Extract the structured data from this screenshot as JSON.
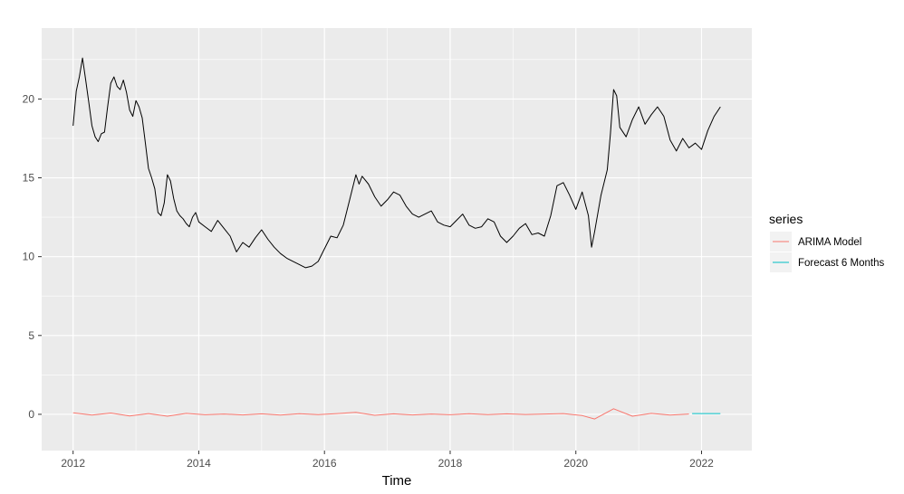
{
  "chart_data": {
    "type": "line",
    "xlabel": "Time",
    "ylabel": "",
    "xlim": [
      2011.5,
      2022.8
    ],
    "ylim": [
      -2.3,
      24.5
    ],
    "x_ticks": [
      2012,
      2014,
      2016,
      2018,
      2020,
      2022
    ],
    "y_ticks": [
      0,
      5,
      10,
      15,
      20
    ],
    "grid": true,
    "legend": {
      "title": "series",
      "position": "right",
      "entries": [
        "ARIMA Model",
        "Forecast 6 Months"
      ]
    },
    "colors": {
      "price": "#000000",
      "ARIMA Model": "#F8766D",
      "Forecast 6 Months": "#00BFC4",
      "panel": "#ebebeb",
      "grid": "#ffffff"
    },
    "series": [
      {
        "x": [
          2012.0,
          2012.05,
          2012.1,
          2012.15,
          2012.2,
          2012.25,
          2012.3,
          2012.35,
          2012.4,
          2012.45,
          2012.5,
          2012.55,
          2012.6,
          2012.65,
          2012.7,
          2012.75,
          2012.8,
          2012.85,
          2012.9,
          2012.95,
          2013.0,
          2013.05,
          2013.1,
          2013.15,
          2013.2,
          2013.25,
          2013.3,
          2013.35,
          2013.4,
          2013.45,
          2013.5,
          2013.55,
          2013.6,
          2013.65,
          2013.7,
          2013.75,
          2013.8,
          2013.85,
          2013.9,
          2013.95,
          2014.0,
          2014.1,
          2014.2,
          2014.3,
          2014.4,
          2014.5,
          2014.6,
          2014.7,
          2014.8,
          2014.9,
          2015.0,
          2015.1,
          2015.2,
          2015.3,
          2015.4,
          2015.5,
          2015.6,
          2015.7,
          2015.8,
          2015.9,
          2016.0,
          2016.1,
          2016.2,
          2016.3,
          2016.4,
          2016.5,
          2016.55,
          2016.6,
          2016.7,
          2016.8,
          2016.9,
          2017.0,
          2017.1,
          2017.2,
          2017.3,
          2017.4,
          2017.5,
          2017.6,
          2017.7,
          2017.8,
          2017.9,
          2018.0,
          2018.1,
          2018.2,
          2018.3,
          2018.4,
          2018.5,
          2018.6,
          2018.7,
          2018.8,
          2018.9,
          2019.0,
          2019.1,
          2019.2,
          2019.3,
          2019.4,
          2019.5,
          2019.6,
          2019.7,
          2019.8,
          2019.9,
          2020.0,
          2020.1,
          2020.2,
          2020.25,
          2020.3,
          2020.4,
          2020.5,
          2020.55,
          2020.6,
          2020.65,
          2020.7,
          2020.8,
          2020.9,
          2021.0,
          2021.1,
          2021.2,
          2021.3,
          2021.4,
          2021.5,
          2021.6,
          2021.7,
          2021.8,
          2021.9,
          2022.0,
          2022.1,
          2022.2,
          2022.3
        ],
        "y": [
          18.3,
          20.5,
          21.4,
          22.6,
          21.2,
          19.8,
          18.3,
          17.6,
          17.3,
          17.8,
          17.9,
          19.5,
          21.0,
          21.4,
          20.8,
          20.6,
          21.2,
          20.4,
          19.3,
          18.9,
          19.9,
          19.5,
          18.8,
          17.2,
          15.6,
          15.0,
          14.3,
          12.8,
          12.6,
          13.4,
          15.2,
          14.8,
          13.7,
          12.9,
          12.6,
          12.4,
          12.1,
          11.9,
          12.5,
          12.8,
          12.2,
          11.9,
          11.6,
          12.3,
          11.8,
          11.3,
          10.3,
          10.9,
          10.6,
          11.2,
          11.7,
          11.1,
          10.6,
          10.2,
          9.9,
          9.7,
          9.5,
          9.3,
          9.4,
          9.7,
          10.5,
          11.3,
          11.2,
          12.0,
          13.6,
          15.2,
          14.6,
          15.1,
          14.6,
          13.8,
          13.2,
          13.6,
          14.1,
          13.9,
          13.2,
          12.7,
          12.5,
          12.7,
          12.9,
          12.2,
          12.0,
          11.9,
          12.3,
          12.7,
          12.0,
          11.8,
          11.9,
          12.4,
          12.2,
          11.3,
          10.9,
          11.3,
          11.8,
          12.1,
          11.4,
          11.5,
          11.3,
          12.6,
          14.5,
          14.7,
          13.9,
          13.0,
          14.1,
          12.6,
          10.6,
          11.6,
          13.9,
          15.5,
          17.8,
          20.6,
          20.2,
          18.2,
          17.6,
          18.7,
          19.5,
          18.4,
          19.0,
          19.5,
          18.9,
          17.4,
          16.7,
          17.5,
          16.9,
          17.2,
          16.8,
          18.0,
          18.9,
          19.5
        ]
      },
      {
        "name": "ARIMA Model",
        "x": [
          2012.0,
          2012.3,
          2012.6,
          2012.9,
          2013.2,
          2013.5,
          2013.8,
          2014.1,
          2014.4,
          2014.7,
          2015.0,
          2015.3,
          2015.6,
          2015.9,
          2016.2,
          2016.5,
          2016.8,
          2017.1,
          2017.4,
          2017.7,
          2018.0,
          2018.3,
          2018.6,
          2018.9,
          2019.2,
          2019.5,
          2019.8,
          2020.1,
          2020.3,
          2020.6,
          2020.9,
          2021.2,
          2021.5,
          2021.8
        ],
        "y": [
          0.1,
          -0.05,
          0.08,
          -0.1,
          0.05,
          -0.12,
          0.06,
          -0.03,
          0.02,
          -0.04,
          0.03,
          -0.05,
          0.04,
          -0.02,
          0.05,
          0.12,
          -0.06,
          0.03,
          -0.04,
          0.02,
          -0.03,
          0.04,
          -0.02,
          0.03,
          -0.01,
          0.02,
          0.05,
          -0.08,
          -0.3,
          0.35,
          -0.12,
          0.06,
          -0.05,
          0.02
        ]
      },
      {
        "name": "Forecast 6 Months",
        "x": [
          2021.85,
          2022.3
        ],
        "y": [
          0.05,
          0.05
        ]
      }
    ]
  }
}
